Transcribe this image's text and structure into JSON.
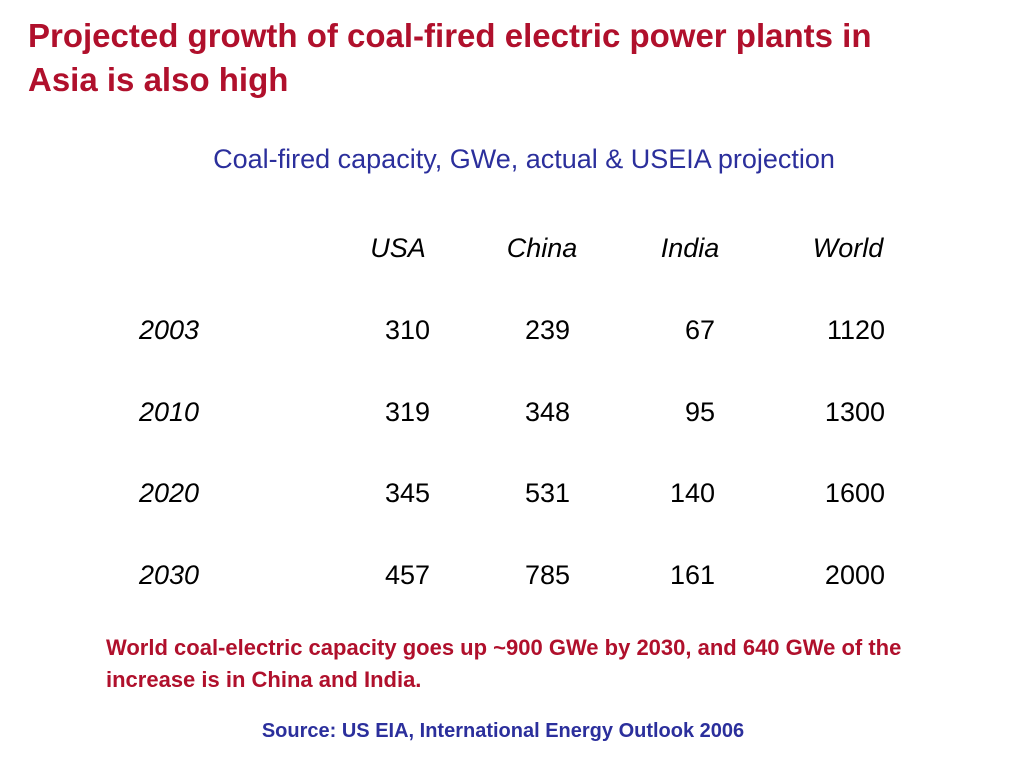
{
  "title": "Projected growth of coal-fired electric power plants in Asia is also high",
  "subtitle": "Coal-fired capacity, GWe, actual & USEIA projection",
  "table": {
    "columns": [
      "USA",
      "China",
      "India",
      "World"
    ],
    "rows": [
      {
        "year": "2003",
        "values": [
          "310",
          "239",
          "67",
          "1120"
        ]
      },
      {
        "year": "2010",
        "values": [
          "319",
          "348",
          "95",
          "1300"
        ]
      },
      {
        "year": "2020",
        "values": [
          "345",
          "531",
          "140",
          "1600"
        ]
      },
      {
        "year": "2030",
        "values": [
          "457",
          "785",
          "161",
          "2000"
        ]
      }
    ]
  },
  "note": "World coal-electric capacity goes up ~900 GWe by 2030, and 640 GWe of the increase is in China and India.",
  "source": "Source:  US EIA, International Energy Outlook 2006",
  "colors": {
    "title": "#b0102c",
    "subtitle": "#2b2f9c",
    "note": "#b0102c",
    "source": "#2b2f9c"
  }
}
